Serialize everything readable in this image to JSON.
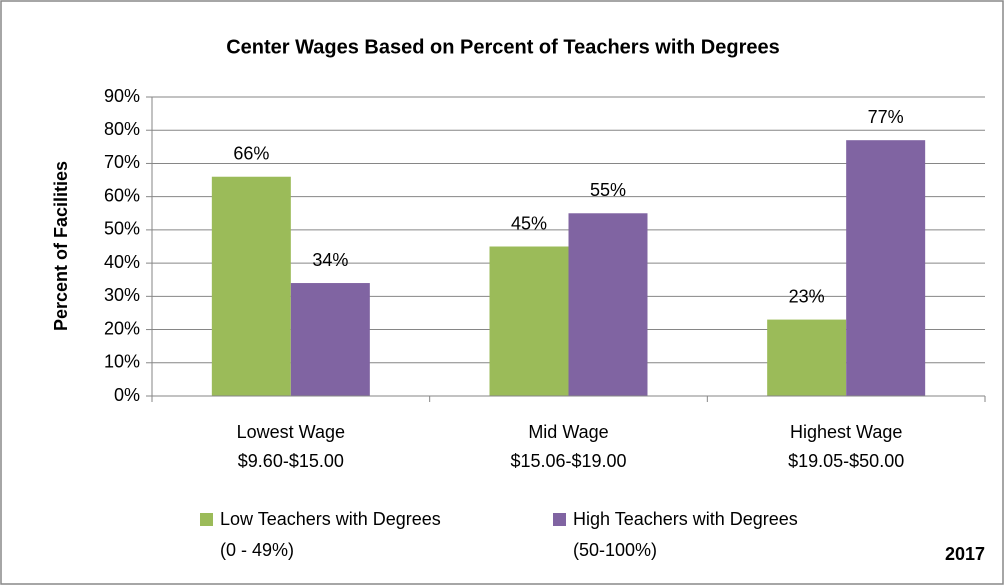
{
  "chart_data": {
    "type": "bar",
    "title": "Center Wages Based on Percent of Teachers with Degrees",
    "y_label": "Percent of Facilities",
    "annotation": "2017",
    "categories": [
      [
        "Lowest Wage",
        "$9.60-$15.00"
      ],
      [
        "Mid Wage",
        "$15.06-$19.00"
      ],
      [
        "Highest Wage",
        "$19.05-$50.00"
      ]
    ],
    "series": [
      {
        "name": [
          "Low Teachers with Degrees",
          "(0 - 49%)"
        ],
        "color": "#9bbb59",
        "values": [
          66,
          45,
          23
        ],
        "value_labels": [
          "66%",
          "45%",
          "23%"
        ]
      },
      {
        "name": [
          "High Teachers with Degrees",
          "(50-100%)"
        ],
        "color": "#8064a2",
        "values": [
          34,
          55,
          77
        ],
        "value_labels": [
          "34%",
          "55%",
          "77%"
        ]
      }
    ],
    "ylim": [
      0,
      90
    ],
    "yticks": [
      {
        "value": 0,
        "label": "0%"
      },
      {
        "value": 10,
        "label": "10%"
      },
      {
        "value": 20,
        "label": "20%"
      },
      {
        "value": 30,
        "label": "30%"
      },
      {
        "value": 40,
        "label": "40%"
      },
      {
        "value": 50,
        "label": "50%"
      },
      {
        "value": 60,
        "label": "60%"
      },
      {
        "value": 70,
        "label": "70%"
      },
      {
        "value": 80,
        "label": "80%"
      },
      {
        "value": 90,
        "label": "90%"
      }
    ],
    "grid": true,
    "legend": "bottom"
  }
}
